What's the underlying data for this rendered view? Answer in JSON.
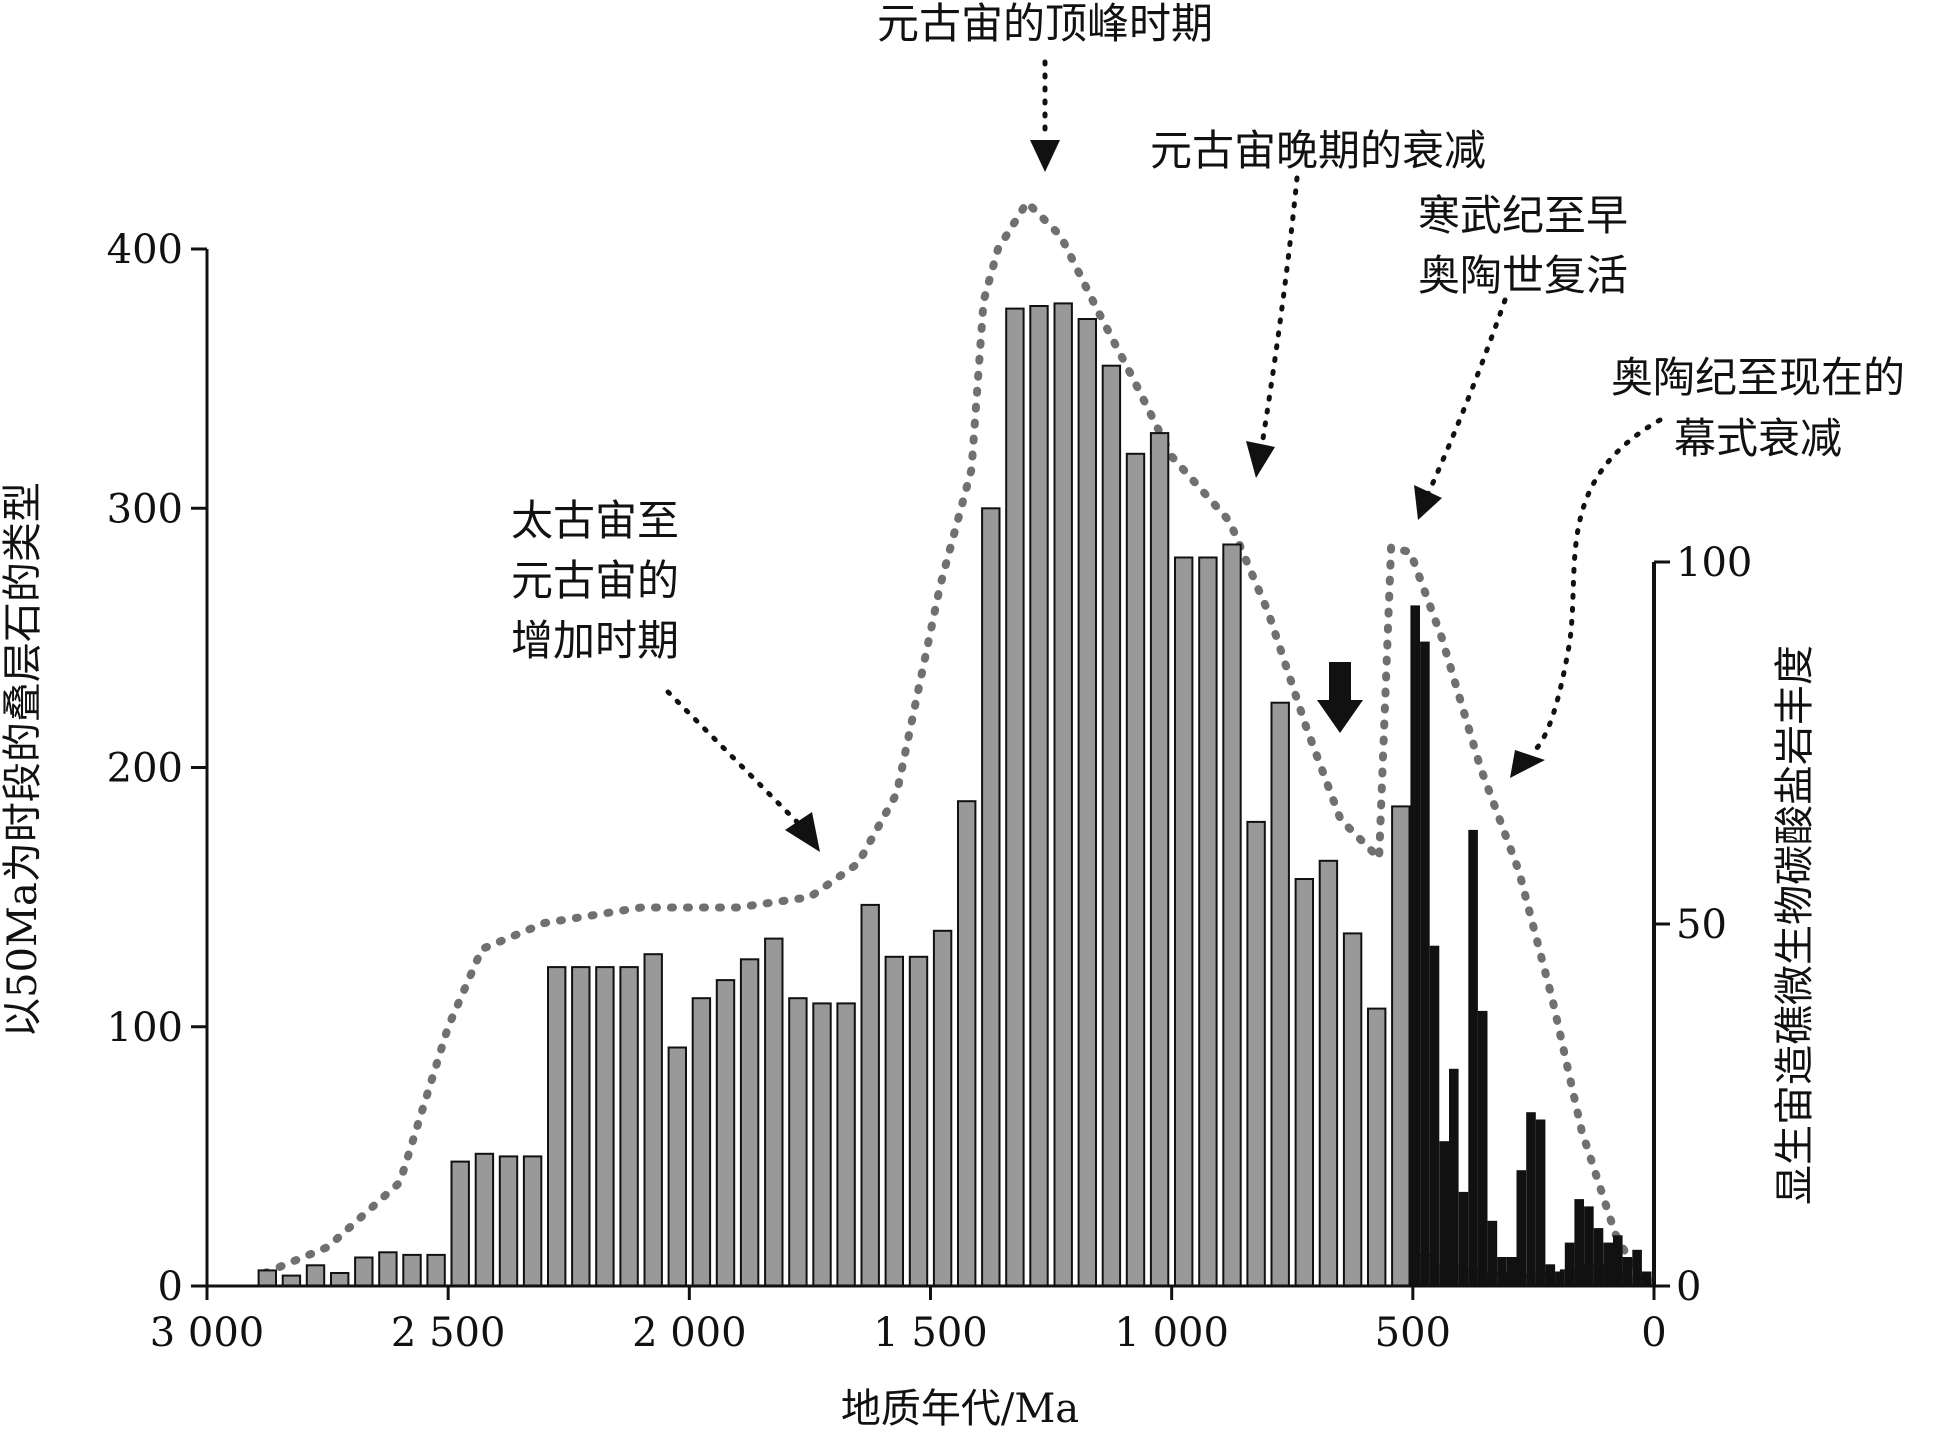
{
  "chart_data": {
    "type": "bar",
    "xlabel": "地质年代/Ma",
    "ylabel": "以50Ma为时段的叠层石的类型",
    "y2label": "显生宙造礁微生物碳酸盐岩丰度",
    "xlim": [
      3000,
      0
    ],
    "ylim": [
      0,
      400
    ],
    "y2lim": [
      0,
      100
    ],
    "x_ticks": [
      {
        "value": 3000,
        "label": "3 000"
      },
      {
        "value": 2500,
        "label": "2 500"
      },
      {
        "value": 2000,
        "label": "2 000"
      },
      {
        "value": 1500,
        "label": "1 500"
      },
      {
        "value": 1000,
        "label": "1 000"
      },
      {
        "value": 500,
        "label": "500"
      },
      {
        "value": 0,
        "label": "0"
      }
    ],
    "y_ticks": [
      {
        "value": 0,
        "label": "0"
      },
      {
        "value": 100,
        "label": "100"
      },
      {
        "value": 200,
        "label": "200"
      },
      {
        "value": 300,
        "label": "300"
      },
      {
        "value": 400,
        "label": "400"
      }
    ],
    "y2_ticks": [
      {
        "value": 0,
        "label": "0"
      },
      {
        "value": 50,
        "label": "50"
      },
      {
        "value": 100,
        "label": "100"
      }
    ],
    "stromatolite_bars": [
      {
        "x": 2875,
        "y": 6
      },
      {
        "x": 2825,
        "y": 4
      },
      {
        "x": 2775,
        "y": 8
      },
      {
        "x": 2725,
        "y": 5
      },
      {
        "x": 2675,
        "y": 11
      },
      {
        "x": 2625,
        "y": 13
      },
      {
        "x": 2575,
        "y": 12
      },
      {
        "x": 2525,
        "y": 12
      },
      {
        "x": 2475,
        "y": 48
      },
      {
        "x": 2425,
        "y": 51
      },
      {
        "x": 2375,
        "y": 50
      },
      {
        "x": 2325,
        "y": 50
      },
      {
        "x": 2275,
        "y": 123
      },
      {
        "x": 2225,
        "y": 123
      },
      {
        "x": 2175,
        "y": 123
      },
      {
        "x": 2125,
        "y": 123
      },
      {
        "x": 2075,
        "y": 128
      },
      {
        "x": 2025,
        "y": 92
      },
      {
        "x": 1975,
        "y": 111
      },
      {
        "x": 1925,
        "y": 118
      },
      {
        "x": 1875,
        "y": 126
      },
      {
        "x": 1825,
        "y": 134
      },
      {
        "x": 1775,
        "y": 111
      },
      {
        "x": 1725,
        "y": 109
      },
      {
        "x": 1675,
        "y": 109
      },
      {
        "x": 1625,
        "y": 147
      },
      {
        "x": 1575,
        "y": 127
      },
      {
        "x": 1525,
        "y": 127
      },
      {
        "x": 1475,
        "y": 137
      },
      {
        "x": 1425,
        "y": 187
      },
      {
        "x": 1375,
        "y": 300
      },
      {
        "x": 1325,
        "y": 377
      },
      {
        "x": 1275,
        "y": 378
      },
      {
        "x": 1225,
        "y": 379
      },
      {
        "x": 1175,
        "y": 373
      },
      {
        "x": 1125,
        "y": 355
      },
      {
        "x": 1075,
        "y": 321
      },
      {
        "x": 1025,
        "y": 329
      },
      {
        "x": 975,
        "y": 281
      },
      {
        "x": 925,
        "y": 281
      },
      {
        "x": 875,
        "y": 286
      },
      {
        "x": 825,
        "y": 179
      },
      {
        "x": 775,
        "y": 225
      },
      {
        "x": 725,
        "y": 157
      },
      {
        "x": 675,
        "y": 164
      },
      {
        "x": 625,
        "y": 136
      },
      {
        "x": 575,
        "y": 107
      },
      {
        "x": 525,
        "y": 185
      },
      {
        "x": 475,
        "y": 12
      },
      {
        "x": 425,
        "y": 8
      },
      {
        "x": 375,
        "y": 6
      },
      {
        "x": 325,
        "y": 5
      },
      {
        "x": 275,
        "y": 4
      },
      {
        "x": 225,
        "y": 5
      },
      {
        "x": 175,
        "y": 6
      },
      {
        "x": 125,
        "y": 8
      },
      {
        "x": 75,
        "y": 5
      },
      {
        "x": 25,
        "y": 3
      }
    ],
    "reef_abundance_bars": [
      {
        "x": 495,
        "y": 94
      },
      {
        "x": 475,
        "y": 89
      },
      {
        "x": 455,
        "y": 47
      },
      {
        "x": 435,
        "y": 20
      },
      {
        "x": 415,
        "y": 30
      },
      {
        "x": 395,
        "y": 13
      },
      {
        "x": 375,
        "y": 63
      },
      {
        "x": 355,
        "y": 38
      },
      {
        "x": 335,
        "y": 9
      },
      {
        "x": 315,
        "y": 4
      },
      {
        "x": 295,
        "y": 4
      },
      {
        "x": 275,
        "y": 16
      },
      {
        "x": 255,
        "y": 24
      },
      {
        "x": 235,
        "y": 23
      },
      {
        "x": 215,
        "y": 3
      },
      {
        "x": 195,
        "y": 2
      },
      {
        "x": 175,
        "y": 6
      },
      {
        "x": 155,
        "y": 12
      },
      {
        "x": 135,
        "y": 11
      },
      {
        "x": 115,
        "y": 8
      },
      {
        "x": 95,
        "y": 6
      },
      {
        "x": 75,
        "y": 7
      },
      {
        "x": 55,
        "y": 4
      },
      {
        "x": 35,
        "y": 5
      },
      {
        "x": 15,
        "y": 2
      }
    ],
    "trend_line": [
      {
        "x": 2880,
        "y": 5
      },
      {
        "x": 2750,
        "y": 15
      },
      {
        "x": 2600,
        "y": 40
      },
      {
        "x": 2500,
        "y": 100
      },
      {
        "x": 2430,
        "y": 130
      },
      {
        "x": 2300,
        "y": 140
      },
      {
        "x": 2100,
        "y": 146
      },
      {
        "x": 1900,
        "y": 146
      },
      {
        "x": 1750,
        "y": 150
      },
      {
        "x": 1650,
        "y": 163
      },
      {
        "x": 1570,
        "y": 190
      },
      {
        "x": 1480,
        "y": 270
      },
      {
        "x": 1415,
        "y": 315
      },
      {
        "x": 1390,
        "y": 380
      },
      {
        "x": 1360,
        "y": 400
      },
      {
        "x": 1300,
        "y": 418
      },
      {
        "x": 1230,
        "y": 405
      },
      {
        "x": 1150,
        "y": 375
      },
      {
        "x": 1080,
        "y": 350
      },
      {
        "x": 1000,
        "y": 320
      },
      {
        "x": 880,
        "y": 295
      },
      {
        "x": 800,
        "y": 260
      },
      {
        "x": 720,
        "y": 215
      },
      {
        "x": 650,
        "y": 180
      },
      {
        "x": 570,
        "y": 165
      },
      {
        "x": 545,
        "y": 285
      },
      {
        "x": 505,
        "y": 283
      },
      {
        "x": 440,
        "y": 250
      },
      {
        "x": 360,
        "y": 200
      },
      {
        "x": 280,
        "y": 160
      },
      {
        "x": 210,
        "y": 110
      },
      {
        "x": 150,
        "y": 60
      },
      {
        "x": 80,
        "y": 20
      },
      {
        "x": 30,
        "y": 3
      }
    ],
    "colors": {
      "stromatolite": "#999999",
      "reef": "#111111",
      "trend": "#707070",
      "axis": "#111111"
    },
    "annotations": [
      {
        "id": "peak",
        "lines": [
          "元古宙的顶峰时期"
        ]
      },
      {
        "id": "late-decline",
        "lines": [
          "元古宙晚期的衰减"
        ]
      },
      {
        "id": "cambrian-revival",
        "lines": [
          "寒武纪至早",
          "奥陶世复活"
        ]
      },
      {
        "id": "ordovician-decline",
        "lines": [
          "奥陶纪至现在的",
          "幕式衰减"
        ]
      },
      {
        "id": "increase",
        "lines": [
          "太古宙至",
          "元古宙的",
          "增加时期"
        ]
      }
    ]
  }
}
